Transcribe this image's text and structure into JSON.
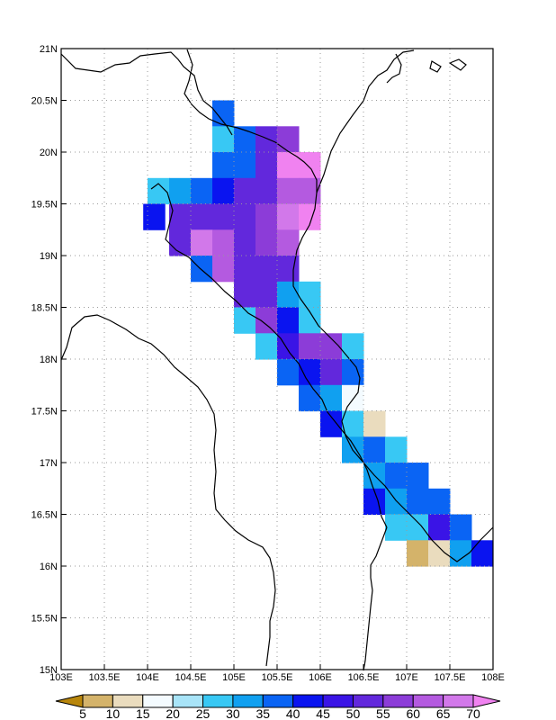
{
  "map": {
    "lon_range": [
      103,
      108
    ],
    "lat_range": [
      15,
      21
    ],
    "cell_size_deg": 0.25,
    "grid": "dotted",
    "x_ticks": [
      "103E",
      "103.5E",
      "104E",
      "104.5E",
      "105E",
      "105.5E",
      "106E",
      "106.5E",
      "107E",
      "107.5E",
      "108E"
    ],
    "y_ticks": [
      "15N",
      "15.5N",
      "16N",
      "16.5N",
      "17N",
      "17.5N",
      "18N",
      "18.5N",
      "19N",
      "19.5N",
      "20N",
      "20.5N",
      "21N"
    ],
    "rows": [
      {
        "lat": 20.25,
        "cells": [
          [
            104.75,
            45
          ],
          [
            104.875,
            0
          ]
        ]
      },
      {
        "lat": 20.375,
        "cells": [
          [
            104.75,
            35
          ]
        ]
      },
      {
        "lat": 20.125,
        "cells": [
          [
            104.75,
            25
          ],
          [
            105.0,
            35
          ],
          [
            105.25,
            50
          ],
          [
            105.5,
            55
          ]
        ]
      },
      {
        "lat": 19.875,
        "cells": [
          [
            104.75,
            35
          ],
          [
            105.0,
            35
          ],
          [
            105.25,
            50
          ],
          [
            105.5,
            70
          ],
          [
            105.75,
            70
          ]
        ]
      },
      {
        "lat": 19.625,
        "cells": [
          [
            104.0,
            25
          ],
          [
            104.25,
            30
          ],
          [
            104.5,
            35
          ],
          [
            104.75,
            40
          ],
          [
            105.0,
            50
          ],
          [
            105.25,
            50
          ],
          [
            105.5,
            60
          ],
          [
            105.75,
            60
          ]
        ]
      },
      {
        "lat": 19.375,
        "cells": [
          [
            103.95,
            40
          ],
          [
            104.25,
            50
          ],
          [
            104.5,
            50
          ],
          [
            104.75,
            50
          ],
          [
            105.0,
            50
          ],
          [
            105.25,
            55
          ],
          [
            105.5,
            65
          ],
          [
            105.75,
            70
          ]
        ]
      },
      {
        "lat": 19.125,
        "cells": [
          [
            104.25,
            50
          ],
          [
            104.5,
            65
          ],
          [
            104.75,
            60
          ],
          [
            105.0,
            50
          ],
          [
            105.25,
            55
          ],
          [
            105.5,
            60
          ]
        ]
      },
      {
        "lat": 18.875,
        "cells": [
          [
            104.5,
            35
          ],
          [
            104.75,
            60
          ],
          [
            105.0,
            50
          ],
          [
            105.25,
            50
          ],
          [
            105.5,
            50
          ]
        ]
      },
      {
        "lat": 18.625,
        "cells": [
          [
            105.0,
            50
          ],
          [
            105.25,
            50
          ],
          [
            105.5,
            30
          ],
          [
            105.75,
            25
          ]
        ]
      },
      {
        "lat": 18.375,
        "cells": [
          [
            105.0,
            25
          ],
          [
            105.25,
            55
          ],
          [
            105.5,
            40
          ],
          [
            105.75,
            25
          ]
        ]
      },
      {
        "lat": 18.125,
        "cells": [
          [
            105.25,
            25
          ],
          [
            105.5,
            45
          ],
          [
            105.75,
            55
          ],
          [
            106.0,
            55
          ],
          [
            106.25,
            25
          ]
        ]
      },
      {
        "lat": 17.875,
        "cells": [
          [
            105.5,
            35
          ],
          [
            105.75,
            40
          ],
          [
            106.0,
            50
          ],
          [
            106.25,
            35
          ]
        ]
      },
      {
        "lat": 17.625,
        "cells": [
          [
            105.75,
            35
          ],
          [
            106.0,
            30
          ],
          [
            106.25,
            15
          ]
        ]
      },
      {
        "lat": 17.375,
        "cells": [
          [
            106.0,
            40
          ],
          [
            106.25,
            25
          ],
          [
            106.5,
            10
          ]
        ]
      },
      {
        "lat": 17.125,
        "cells": [
          [
            106.25,
            30
          ],
          [
            106.5,
            35
          ],
          [
            106.75,
            25
          ]
        ]
      },
      {
        "lat": 16.875,
        "cells": [
          [
            106.5,
            30
          ],
          [
            106.75,
            35
          ],
          [
            107.0,
            35
          ]
        ]
      },
      {
        "lat": 16.625,
        "cells": [
          [
            106.5,
            40
          ],
          [
            106.75,
            30
          ],
          [
            107.0,
            35
          ],
          [
            107.25,
            35
          ]
        ]
      },
      {
        "lat": 16.375,
        "cells": [
          [
            106.75,
            25
          ],
          [
            107.0,
            25
          ],
          [
            107.25,
            45
          ],
          [
            107.5,
            35
          ]
        ]
      },
      {
        "lat": 16.125,
        "cells": [
          [
            107.0,
            5
          ],
          [
            107.25,
            10
          ],
          [
            107.5,
            30
          ],
          [
            107.75,
            40
          ]
        ]
      }
    ]
  },
  "colorbar": {
    "levels": [
      "5",
      "10",
      "15",
      "20",
      "25",
      "30",
      "35",
      "40",
      "45",
      "50",
      "55",
      "60",
      "65",
      "70"
    ],
    "colors": [
      "#b8860b",
      "#d4b36a",
      "#eadcbe",
      "#f4fbff",
      "#a8e4f8",
      "#38c8f4",
      "#10a0f0",
      "#0a64f4",
      "#0a14f0",
      "#3a14e6",
      "#6228dc",
      "#8c3cd8",
      "#b45ae0",
      "#d278ea",
      "#f082f0"
    ]
  }
}
